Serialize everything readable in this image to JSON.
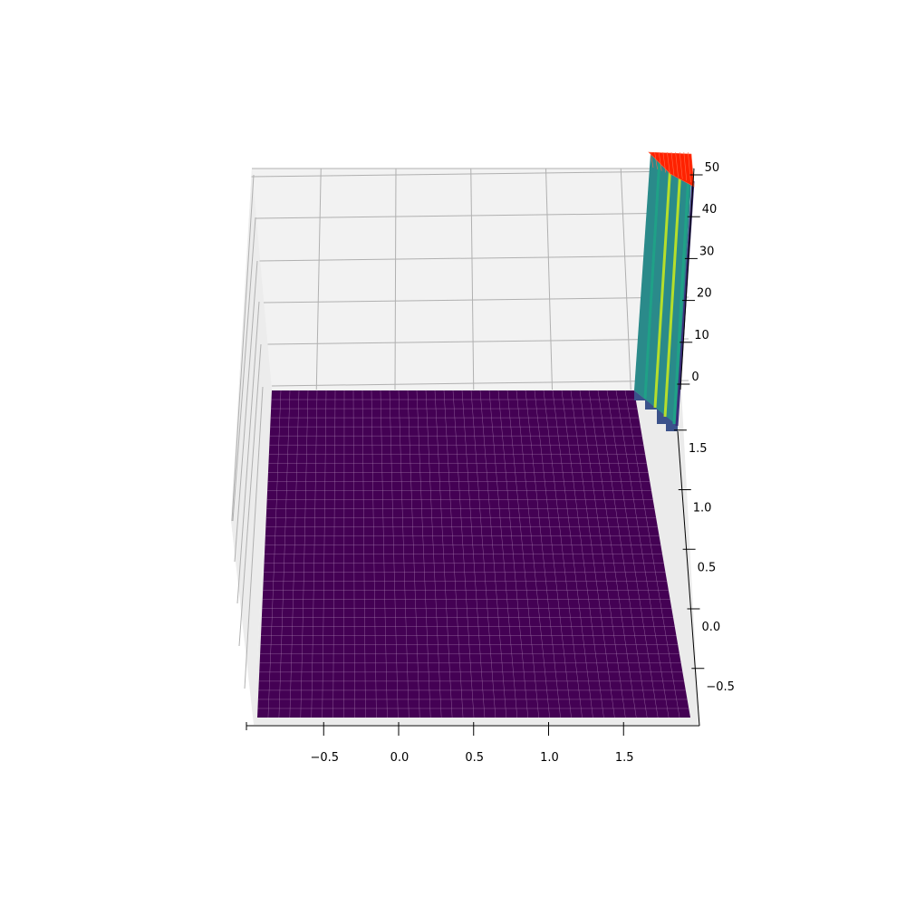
{
  "chart_data": {
    "type": "surface3d",
    "title": "",
    "xlabel": "",
    "ylabel": "",
    "zlabel": "",
    "x_ticks": [
      -0.5,
      0.0,
      0.5,
      1.0,
      1.5
    ],
    "x_tick_labels": [
      "−0.5",
      "0.0",
      "0.5",
      "1.0",
      "1.5"
    ],
    "y_ticks": [
      -0.5,
      0.0,
      0.5,
      1.0,
      1.5
    ],
    "y_tick_labels": [
      "−0.5",
      "0.0",
      "0.5",
      "1.0",
      "1.5"
    ],
    "z_ticks": [
      0,
      10,
      20,
      30,
      40,
      50
    ],
    "z_tick_labels": [
      "0",
      "10",
      "20",
      "30",
      "40",
      "50"
    ],
    "xlim": [
      -1.0,
      2.0
    ],
    "ylim": [
      -1.0,
      2.0
    ],
    "zlim": [
      -2,
      50
    ],
    "grid": true,
    "colormap": "viridis",
    "surface": {
      "flat_region_z": 0,
      "flat_region_color": "#440154",
      "rising_edge_x_start": 1.55,
      "rising_edge_max_z": 50,
      "clipped_top_color": "#ff1a00"
    },
    "colors": {
      "pane": "#f2f2f2",
      "grid": "#b0b0b0",
      "flat": "#440154",
      "mesh_line": "#a77fb0",
      "teal": "#2a8a8a",
      "green": "#1fa187",
      "yellow": "#b5de2b",
      "red": "#ff2200"
    }
  }
}
